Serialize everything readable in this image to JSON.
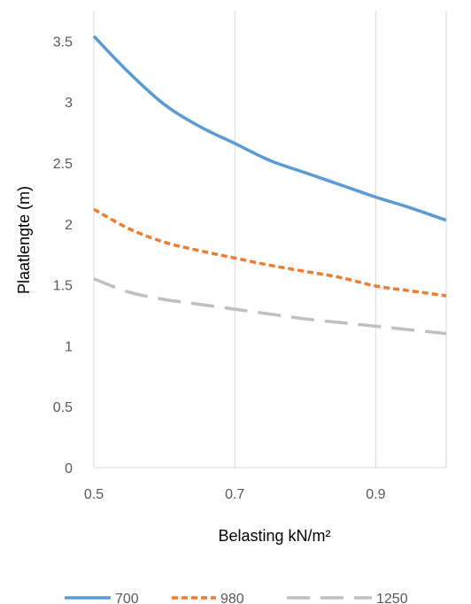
{
  "chart_data": {
    "type": "line",
    "xlabel": "Belasting kN/m²",
    "ylabel": "Plaatlengte (m)",
    "xlim": [
      0.5,
      1.0
    ],
    "ylim": [
      0,
      3.75
    ],
    "x_ticks": [
      "0.5",
      "0.7",
      "0.9"
    ],
    "y_ticks": [
      "0",
      "0.5",
      "1",
      "1.5",
      "2",
      "2.5",
      "3",
      "3.5"
    ],
    "grid": "vertical",
    "legend_position": "bottom",
    "x": [
      0.5,
      0.55,
      0.6,
      0.65,
      0.7,
      0.75,
      0.8,
      0.85,
      0.9,
      0.95,
      1.0
    ],
    "series": [
      {
        "name": "700",
        "style": "solid",
        "color": "#5b9bd5",
        "values": [
          3.54,
          3.24,
          2.98,
          2.8,
          2.66,
          2.52,
          2.42,
          2.32,
          2.22,
          2.13,
          2.03
        ]
      },
      {
        "name": "980",
        "style": "dotted",
        "color": "#ed7d31",
        "values": [
          2.12,
          1.96,
          1.85,
          1.78,
          1.72,
          1.66,
          1.61,
          1.56,
          1.49,
          1.45,
          1.41
        ]
      },
      {
        "name": "1250",
        "style": "dashed",
        "color": "#bfbfbf",
        "values": [
          1.55,
          1.44,
          1.38,
          1.34,
          1.3,
          1.26,
          1.22,
          1.19,
          1.16,
          1.13,
          1.1
        ]
      }
    ]
  }
}
